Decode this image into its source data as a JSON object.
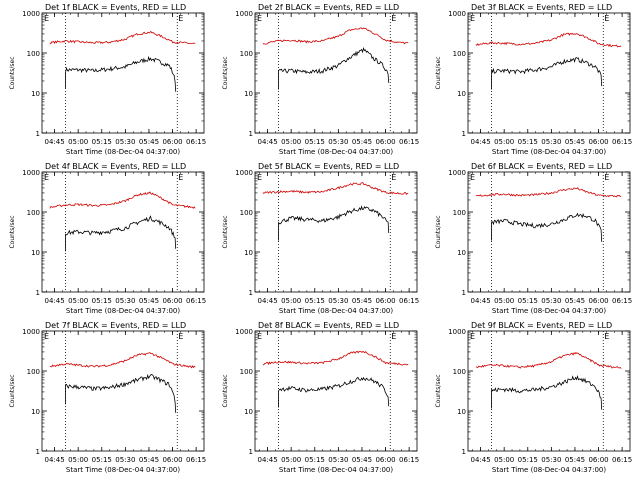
{
  "chart_data": [
    {
      "type": "line",
      "title": "Det 1f BLACK = Events, RED = LLD",
      "ylabel": "Counts/sec",
      "xlabel": "Start Time (08-Dec-04 04:37:00)",
      "y_scale": "log",
      "ylim": [
        1,
        1000
      ],
      "y_ticks": [
        "1",
        "10",
        "100",
        "1000"
      ],
      "x_ticks": [
        "04:45",
        "05:00",
        "05:15",
        "05:30",
        "05:45",
        "06:00",
        "06:15"
      ],
      "grid": false,
      "markers": [
        {
          "label": "E",
          "x": "04:45"
        },
        {
          "label": "E",
          "x": "06:00"
        }
      ],
      "series": [
        {
          "label_color": "#000000",
          "x": [
            "04:52",
            "05:00",
            "05:10",
            "05:20",
            "05:30",
            "05:38",
            "05:46",
            "05:52",
            "05:58",
            "06:02"
          ],
          "values": [
            38,
            38,
            36,
            40,
            45,
            60,
            72,
            60,
            48,
            18
          ]
        },
        {
          "label_color": "#d00000",
          "x": [
            "04:42",
            "04:52",
            "05:00",
            "05:10",
            "05:20",
            "05:30",
            "05:38",
            "05:46",
            "05:52",
            "06:00",
            "06:10",
            "06:15"
          ],
          "values": [
            180,
            200,
            190,
            180,
            185,
            220,
            300,
            330,
            270,
            190,
            175,
            170
          ]
        }
      ]
    },
    {
      "type": "line",
      "title": "Det 2f BLACK = Events, RED = LLD",
      "ylabel": "Counts/sec",
      "xlabel": "Start Time (08-Dec-04 04:37:00)",
      "y_scale": "log",
      "ylim": [
        1,
        1000
      ],
      "y_ticks": [
        "1",
        "10",
        "100",
        "1000"
      ],
      "x_ticks": [
        "04:45",
        "05:00",
        "05:15",
        "05:30",
        "05:45",
        "06:00",
        "06:15"
      ],
      "grid": false,
      "markers": [
        {
          "label": "E",
          "x": "04:45"
        },
        {
          "label": "E",
          "x": "06:00"
        }
      ],
      "series": [
        {
          "label_color": "#000000",
          "x": [
            "04:52",
            "05:00",
            "05:10",
            "05:20",
            "05:30",
            "05:38",
            "05:46",
            "05:52",
            "05:58",
            "06:02"
          ],
          "values": [
            35,
            36,
            33,
            36,
            48,
            80,
            120,
            75,
            50,
            30
          ]
        },
        {
          "label_color": "#d00000",
          "x": [
            "04:42",
            "04:52",
            "05:00",
            "05:10",
            "05:20",
            "05:30",
            "05:38",
            "05:46",
            "05:52",
            "06:00",
            "06:10",
            "06:15"
          ],
          "values": [
            170,
            200,
            210,
            190,
            200,
            260,
            380,
            420,
            320,
            210,
            180,
            175
          ]
        }
      ]
    },
    {
      "type": "line",
      "title": "Det 3f BLACK = Events, RED = LLD",
      "ylabel": "Counts/sec",
      "xlabel": "Start Time (08-Dec-04 04:37:00)",
      "y_scale": "log",
      "ylim": [
        1,
        1000
      ],
      "y_ticks": [
        "1",
        "10",
        "100",
        "1000"
      ],
      "x_ticks": [
        "04:45",
        "05:00",
        "05:15",
        "05:30",
        "05:45",
        "06:00",
        "06:15"
      ],
      "grid": false,
      "markers": [
        {
          "label": "E",
          "x": "04:45"
        },
        {
          "label": "E",
          "x": "06:00"
        }
      ],
      "series": [
        {
          "label_color": "#000000",
          "x": [
            "04:52",
            "05:00",
            "05:10",
            "05:20",
            "05:30",
            "05:38",
            "05:46",
            "05:52",
            "05:58",
            "06:02"
          ],
          "values": [
            35,
            36,
            34,
            38,
            45,
            62,
            70,
            58,
            45,
            25
          ]
        },
        {
          "label_color": "#d00000",
          "x": [
            "04:42",
            "04:52",
            "05:00",
            "05:10",
            "05:20",
            "05:30",
            "05:38",
            "05:46",
            "05:52",
            "06:00",
            "06:10",
            "06:15"
          ],
          "values": [
            160,
            180,
            175,
            165,
            175,
            210,
            290,
            310,
            250,
            170,
            150,
            150
          ]
        }
      ]
    },
    {
      "type": "line",
      "title": "Det 4f BLACK = Events, RED = LLD",
      "ylabel": "Counts/sec",
      "xlabel": "Start Time (08-Dec-04 04:37:00)",
      "y_scale": "log",
      "ylim": [
        1,
        1000
      ],
      "y_ticks": [
        "1",
        "10",
        "100",
        "1000"
      ],
      "x_ticks": [
        "04:45",
        "05:00",
        "05:15",
        "05:30",
        "05:45",
        "06:00",
        "06:15"
      ],
      "grid": false,
      "markers": [
        {
          "label": "E",
          "x": "04:45"
        },
        {
          "label": "E",
          "x": "06:00"
        }
      ],
      "series": [
        {
          "label_color": "#000000",
          "x": [
            "04:52",
            "05:00",
            "05:10",
            "05:20",
            "05:30",
            "05:38",
            "05:46",
            "05:52",
            "05:58",
            "06:02"
          ],
          "values": [
            30,
            32,
            30,
            33,
            40,
            55,
            70,
            55,
            40,
            20
          ]
        },
        {
          "label_color": "#d00000",
          "x": [
            "04:42",
            "04:52",
            "05:00",
            "05:10",
            "05:20",
            "05:30",
            "05:38",
            "05:46",
            "05:52",
            "06:00",
            "06:10",
            "06:15"
          ],
          "values": [
            130,
            150,
            155,
            145,
            150,
            190,
            270,
            300,
            230,
            150,
            135,
            130
          ]
        }
      ]
    },
    {
      "type": "line",
      "title": "Det 5f BLACK = Events, RED = LLD",
      "ylabel": "Counts/sec",
      "xlabel": "Start Time (08-Dec-04 04:37:00)",
      "y_scale": "log",
      "ylim": [
        1,
        1000
      ],
      "y_ticks": [
        "1",
        "10",
        "100",
        "1000"
      ],
      "x_ticks": [
        "04:45",
        "05:00",
        "05:15",
        "05:30",
        "05:45",
        "06:00",
        "06:15"
      ],
      "grid": false,
      "markers": [
        {
          "label": "E",
          "x": "04:45"
        },
        {
          "label": "E",
          "x": "06:00"
        }
      ],
      "series": [
        {
          "label_color": "#000000",
          "x": [
            "04:52",
            "05:00",
            "05:10",
            "05:20",
            "05:30",
            "05:38",
            "05:46",
            "05:52",
            "05:58",
            "06:02"
          ],
          "values": [
            55,
            70,
            65,
            60,
            75,
            105,
            125,
            110,
            75,
            50
          ]
        },
        {
          "label_color": "#d00000",
          "x": [
            "04:42",
            "04:52",
            "05:00",
            "05:10",
            "05:20",
            "05:30",
            "05:38",
            "05:46",
            "05:52",
            "06:00",
            "06:10",
            "06:15"
          ],
          "values": [
            300,
            320,
            330,
            310,
            320,
            400,
            500,
            510,
            400,
            310,
            290,
            290
          ]
        }
      ]
    },
    {
      "type": "line",
      "title": "Det 6f BLACK = Events, RED = LLD",
      "ylabel": "Counts/sec",
      "xlabel": "Start Time (08-Dec-04 04:37:00)",
      "y_scale": "log",
      "ylim": [
        1,
        1000
      ],
      "y_ticks": [
        "1",
        "10",
        "100",
        "1000"
      ],
      "x_ticks": [
        "04:45",
        "05:00",
        "05:15",
        "05:30",
        "05:45",
        "06:00",
        "06:15"
      ],
      "grid": false,
      "markers": [
        {
          "label": "E",
          "x": "04:45"
        },
        {
          "label": "E",
          "x": "06:00"
        }
      ],
      "series": [
        {
          "label_color": "#000000",
          "x": [
            "04:52",
            "05:00",
            "05:10",
            "05:20",
            "05:30",
            "05:38",
            "05:46",
            "05:52",
            "05:58",
            "06:02"
          ],
          "values": [
            55,
            60,
            50,
            45,
            50,
            65,
            85,
            80,
            60,
            30
          ]
        },
        {
          "label_color": "#d00000",
          "x": [
            "04:42",
            "04:52",
            "05:00",
            "05:10",
            "05:20",
            "05:30",
            "05:38",
            "05:46",
            "05:52",
            "06:00",
            "06:10",
            "06:15"
          ],
          "values": [
            250,
            270,
            280,
            260,
            270,
            300,
            360,
            390,
            320,
            260,
            250,
            245
          ]
        }
      ]
    },
    {
      "type": "line",
      "title": "Det 7f BLACK = Events, RED = LLD",
      "ylabel": "Counts/sec",
      "xlabel": "Start Time (08-Dec-04 04:37:00)",
      "y_scale": "log",
      "ylim": [
        1,
        1000
      ],
      "y_ticks": [
        "1",
        "10",
        "100",
        "1000"
      ],
      "x_ticks": [
        "04:45",
        "05:00",
        "05:15",
        "05:30",
        "05:45",
        "06:00",
        "06:15"
      ],
      "grid": false,
      "markers": [
        {
          "label": "E",
          "x": "04:45"
        },
        {
          "label": "E",
          "x": "06:00"
        }
      ],
      "series": [
        {
          "label_color": "#000000",
          "x": [
            "04:52",
            "05:00",
            "05:10",
            "05:20",
            "05:30",
            "05:38",
            "05:46",
            "05:52",
            "05:58",
            "06:02"
          ],
          "values": [
            42,
            40,
            36,
            38,
            48,
            60,
            75,
            60,
            45,
            15
          ]
        },
        {
          "label_color": "#d00000",
          "x": [
            "04:42",
            "04:52",
            "05:00",
            "05:10",
            "05:20",
            "05:30",
            "05:38",
            "05:46",
            "05:52",
            "06:00",
            "06:10",
            "06:15"
          ],
          "values": [
            130,
            150,
            140,
            130,
            140,
            180,
            250,
            280,
            220,
            150,
            130,
            125
          ]
        }
      ]
    },
    {
      "type": "line",
      "title": "Det 8f BLACK = Events, RED = LLD",
      "ylabel": "Counts/sec",
      "xlabel": "Start Time (08-Dec-04 04:37:00)",
      "y_scale": "log",
      "ylim": [
        1,
        1000
      ],
      "y_ticks": [
        "1",
        "10",
        "100",
        "1000"
      ],
      "x_ticks": [
        "04:45",
        "05:00",
        "05:15",
        "05:30",
        "05:45",
        "06:00",
        "06:15"
      ],
      "grid": false,
      "markers": [
        {
          "label": "E",
          "x": "04:45"
        },
        {
          "label": "E",
          "x": "06:00"
        }
      ],
      "series": [
        {
          "label_color": "#000000",
          "x": [
            "04:52",
            "05:00",
            "05:10",
            "05:20",
            "05:30",
            "05:38",
            "05:46",
            "05:52",
            "05:58",
            "06:02"
          ],
          "values": [
            35,
            37,
            33,
            35,
            42,
            55,
            68,
            58,
            40,
            22
          ]
        },
        {
          "label_color": "#d00000",
          "x": [
            "04:42",
            "04:52",
            "05:00",
            "05:10",
            "05:20",
            "05:30",
            "05:38",
            "05:46",
            "05:52",
            "06:00",
            "06:10",
            "06:15"
          ],
          "values": [
            150,
            170,
            165,
            155,
            160,
            200,
            280,
            310,
            240,
            160,
            150,
            145
          ]
        }
      ]
    },
    {
      "type": "line",
      "title": "Det 9f BLACK = Events, RED = LLD",
      "ylabel": "Counts/sec",
      "xlabel": "Start Time (08-Dec-04 04:37:00)",
      "y_scale": "log",
      "ylim": [
        1,
        1000
      ],
      "y_ticks": [
        "1",
        "10",
        "100",
        "1000"
      ],
      "x_ticks": [
        "04:45",
        "05:00",
        "05:15",
        "05:30",
        "05:45",
        "06:00",
        "06:15"
      ],
      "grid": false,
      "markers": [
        {
          "label": "E",
          "x": "04:45"
        },
        {
          "label": "E",
          "x": "06:00"
        }
      ],
      "series": [
        {
          "label_color": "#000000",
          "x": [
            "04:52",
            "05:00",
            "05:10",
            "05:20",
            "05:30",
            "05:38",
            "05:46",
            "05:52",
            "05:58",
            "06:02"
          ],
          "values": [
            33,
            35,
            32,
            34,
            40,
            52,
            70,
            55,
            40,
            18
          ]
        },
        {
          "label_color": "#d00000",
          "x": [
            "04:42",
            "04:52",
            "05:00",
            "05:10",
            "05:20",
            "05:30",
            "05:38",
            "05:46",
            "05:52",
            "06:00",
            "06:10",
            "06:15"
          ],
          "values": [
            125,
            140,
            135,
            125,
            135,
            170,
            240,
            280,
            210,
            140,
            125,
            120
          ]
        }
      ]
    }
  ]
}
